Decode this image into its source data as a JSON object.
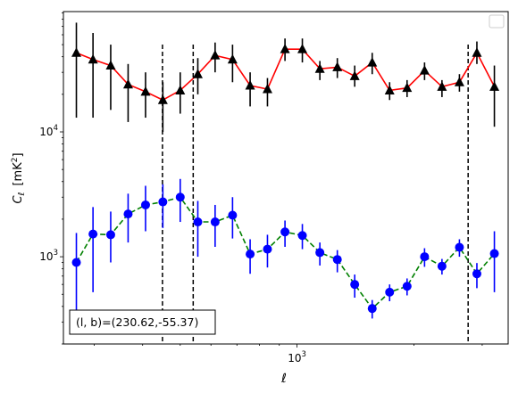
{
  "chart_data": {
    "type": "scatter",
    "x_scale": "log",
    "y_scale": "log",
    "xlim": [
      250,
      3500
    ],
    "ylim": [
      200,
      92000
    ],
    "xlabel": "ℓ",
    "ylabel_main": "C",
    "ylabel_sub": "ℓ",
    "ylabel_unit": "[mK",
    "ylabel_unit_sup": "2",
    "ylabel_unit_close": "]",
    "x_tick_labels": [
      {
        "value": 1000,
        "base": "10",
        "exp": "3"
      }
    ],
    "y_tick_labels": [
      {
        "value": 1000,
        "base": "10",
        "exp": "3"
      },
      {
        "value": 10000,
        "base": "10",
        "exp": "4"
      }
    ],
    "vlines": [
      450,
      540,
      2760
    ],
    "annotation": "(l, b)=(230.62,-55.37)",
    "legend": "top-right",
    "series": [
      {
        "marker": "triangle",
        "line_color": "#ff0000",
        "line_style": "solid",
        "marker_color": "#000000",
        "points": [
          {
            "x": 270,
            "y": 43000,
            "lo": 13000,
            "hi": 75000
          },
          {
            "x": 298,
            "y": 38000,
            "lo": 13000,
            "hi": 62000
          },
          {
            "x": 331,
            "y": 34000,
            "lo": 15000,
            "hi": 50000
          },
          {
            "x": 367,
            "y": 24000,
            "lo": 12000,
            "hi": 35000
          },
          {
            "x": 407,
            "y": 21000,
            "lo": 13000,
            "hi": 30000
          },
          {
            "x": 451,
            "y": 18000,
            "lo": 10000,
            "hi": 25000
          },
          {
            "x": 500,
            "y": 21500,
            "lo": 14000,
            "hi": 30000
          },
          {
            "x": 555,
            "y": 29000,
            "lo": 20000,
            "hi": 39000
          },
          {
            "x": 615,
            "y": 41000,
            "lo": 30000,
            "hi": 52000
          },
          {
            "x": 682,
            "y": 38000,
            "lo": 25000,
            "hi": 50000
          },
          {
            "x": 757,
            "y": 23500,
            "lo": 16000,
            "hi": 30000
          },
          {
            "x": 839,
            "y": 22000,
            "lo": 16000,
            "hi": 27000
          },
          {
            "x": 931,
            "y": 46000,
            "lo": 37000,
            "hi": 56000
          },
          {
            "x": 1032,
            "y": 46000,
            "lo": 36000,
            "hi": 56000
          },
          {
            "x": 1145,
            "y": 32000,
            "lo": 26000,
            "hi": 37000
          },
          {
            "x": 1270,
            "y": 33000,
            "lo": 27000,
            "hi": 39000
          },
          {
            "x": 1408,
            "y": 28000,
            "lo": 23000,
            "hi": 34000
          },
          {
            "x": 1562,
            "y": 36000,
            "lo": 29000,
            "hi": 43000
          },
          {
            "x": 1732,
            "y": 21500,
            "lo": 18000,
            "hi": 25000
          },
          {
            "x": 1921,
            "y": 22500,
            "lo": 19000,
            "hi": 26000
          },
          {
            "x": 2131,
            "y": 31000,
            "lo": 26000,
            "hi": 36000
          },
          {
            "x": 2363,
            "y": 23000,
            "lo": 19000,
            "hi": 26000
          },
          {
            "x": 2621,
            "y": 25000,
            "lo": 21000,
            "hi": 29000
          },
          {
            "x": 2907,
            "y": 43000,
            "lo": 35000,
            "hi": 53000
          },
          {
            "x": 3225,
            "y": 23000,
            "lo": 11000,
            "hi": 34000
          }
        ]
      },
      {
        "marker": "circle",
        "line_color": "#008000",
        "line_style": "dashed",
        "marker_color": "#0000ff",
        "points": [
          {
            "x": 270,
            "y": 900,
            "lo": 300,
            "hi": 1550
          },
          {
            "x": 298,
            "y": 1520,
            "lo": 520,
            "hi": 2500
          },
          {
            "x": 331,
            "y": 1500,
            "lo": 900,
            "hi": 2300
          },
          {
            "x": 367,
            "y": 2200,
            "lo": 1300,
            "hi": 3200
          },
          {
            "x": 407,
            "y": 2600,
            "lo": 1600,
            "hi": 3700
          },
          {
            "x": 451,
            "y": 2750,
            "lo": 1700,
            "hi": 3800
          },
          {
            "x": 500,
            "y": 3000,
            "lo": 1900,
            "hi": 4200
          },
          {
            "x": 555,
            "y": 1900,
            "lo": 1000,
            "hi": 2800
          },
          {
            "x": 615,
            "y": 1900,
            "lo": 1200,
            "hi": 2600
          },
          {
            "x": 682,
            "y": 2150,
            "lo": 1400,
            "hi": 3000
          },
          {
            "x": 757,
            "y": 1050,
            "lo": 730,
            "hi": 1380
          },
          {
            "x": 839,
            "y": 1150,
            "lo": 820,
            "hi": 1500
          },
          {
            "x": 931,
            "y": 1580,
            "lo": 1200,
            "hi": 1950
          },
          {
            "x": 1032,
            "y": 1480,
            "lo": 1150,
            "hi": 1830
          },
          {
            "x": 1145,
            "y": 1080,
            "lo": 850,
            "hi": 1300
          },
          {
            "x": 1270,
            "y": 950,
            "lo": 750,
            "hi": 1130
          },
          {
            "x": 1408,
            "y": 600,
            "lo": 470,
            "hi": 720
          },
          {
            "x": 1562,
            "y": 385,
            "lo": 320,
            "hi": 450
          },
          {
            "x": 1732,
            "y": 520,
            "lo": 440,
            "hi": 600
          },
          {
            "x": 1921,
            "y": 580,
            "lo": 490,
            "hi": 670
          },
          {
            "x": 2131,
            "y": 1000,
            "lo": 830,
            "hi": 1170
          },
          {
            "x": 2363,
            "y": 840,
            "lo": 720,
            "hi": 960
          },
          {
            "x": 2621,
            "y": 1190,
            "lo": 1000,
            "hi": 1380
          },
          {
            "x": 2907,
            "y": 730,
            "lo": 560,
            "hi": 890
          },
          {
            "x": 3225,
            "y": 1060,
            "lo": 520,
            "hi": 1600
          }
        ]
      }
    ]
  }
}
